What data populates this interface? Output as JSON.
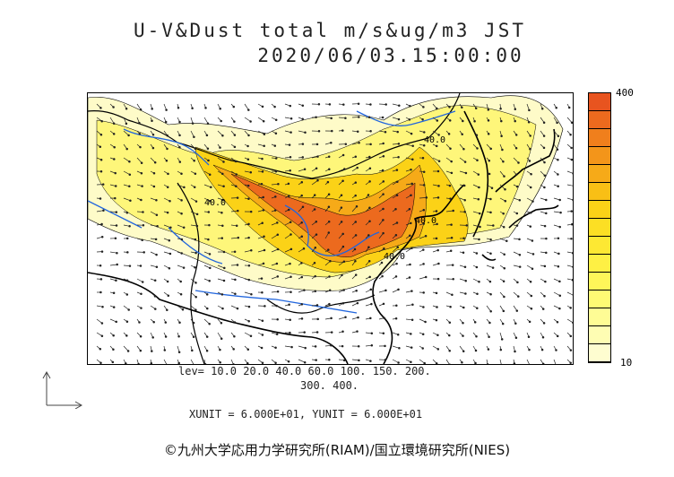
{
  "title": {
    "line1": "U-V&Dust total m/s&ug/m3 JST",
    "line2": "2020/06/03.15:00:00"
  },
  "colorbar": {
    "max_label": "400",
    "min_label": "10",
    "colors_top_to_bottom": [
      "#e8541f",
      "#ec6a1e",
      "#f07f1c",
      "#f3951a",
      "#f6aa18",
      "#f9bf15",
      "#fbd217",
      "#fcdf24",
      "#fde833",
      "#fef044",
      "#fef659",
      "#fefa74",
      "#fefc95",
      "#fefdb3",
      "#fefdd0"
    ]
  },
  "levels": {
    "line1": "lev= 10.0 20.0 40.0 60.0 100. 150. 200.",
    "line2": "300. 400."
  },
  "units": {
    "text": "XUNIT = 6.000E+01, YUNIT = 6.000E+01"
  },
  "contour_labels": [
    "40.0",
    "40.0",
    "40.0",
    "40.0"
  ],
  "credit": "©九州大学応用力学研究所(RIAM)/国立環境研究所(NIES)"
}
